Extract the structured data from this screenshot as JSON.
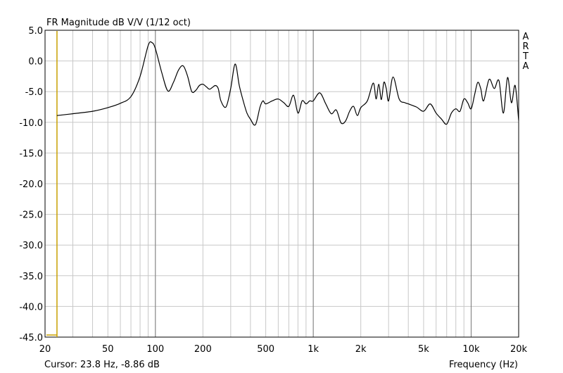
{
  "chart_data": {
    "type": "line",
    "title": "FR Magnitude dB V/V (1/12 oct)",
    "watermark": [
      "A",
      "R",
      "T",
      "A"
    ],
    "xlabel": "Frequency (Hz)",
    "ylabel": "",
    "x_scale": "log",
    "xlim": [
      20,
      20000
    ],
    "ylim": [
      -45,
      5
    ],
    "grid": true,
    "x_ticks": [
      {
        "value": 20,
        "label": "20"
      },
      {
        "value": 50,
        "label": "50"
      },
      {
        "value": 100,
        "label": "100"
      },
      {
        "value": 200,
        "label": "200"
      },
      {
        "value": 500,
        "label": "500"
      },
      {
        "value": 1000,
        "label": "1k"
      },
      {
        "value": 2000,
        "label": "2k"
      },
      {
        "value": 5000,
        "label": "5k"
      },
      {
        "value": 10000,
        "label": "10k"
      },
      {
        "value": 20000,
        "label": "20k"
      }
    ],
    "y_ticks": [
      {
        "value": 5,
        "label": "5.0"
      },
      {
        "value": 0,
        "label": "0.0"
      },
      {
        "value": -5,
        "label": "-5.0"
      },
      {
        "value": -10,
        "label": "-10.0"
      },
      {
        "value": -15,
        "label": "-15.0"
      },
      {
        "value": -20,
        "label": "-20.0"
      },
      {
        "value": -25,
        "label": "-25.0"
      },
      {
        "value": -30,
        "label": "-30.0"
      },
      {
        "value": -35,
        "label": "-35.0"
      },
      {
        "value": -40,
        "label": "-40.0"
      },
      {
        "value": -45,
        "label": "-45.0"
      }
    ],
    "cursor": {
      "frequency_hz": 23.8,
      "db": -8.86,
      "text": "Cursor: 23.8 Hz, -8.86 dB",
      "color": "#c8a000"
    },
    "series": [
      {
        "color": "#000000",
        "x": [
          23.8,
          30,
          40,
          50,
          60,
          70,
          80,
          90,
          95,
          100,
          110,
          120,
          130,
          140,
          150,
          160,
          170,
          180,
          190,
          200,
          210,
          220,
          230,
          240,
          250,
          260,
          280,
          300,
          320,
          340,
          360,
          380,
          400,
          430,
          460,
          480,
          500,
          550,
          600,
          650,
          700,
          750,
          800,
          850,
          900,
          950,
          1000,
          1100,
          1200,
          1300,
          1400,
          1500,
          1600,
          1700,
          1800,
          1900,
          2000,
          2200,
          2400,
          2500,
          2600,
          2700,
          2800,
          2900,
          3000,
          3200,
          3500,
          3800,
          4000,
          4500,
          5000,
          5500,
          6000,
          6500,
          7000,
          7500,
          8000,
          8500,
          9000,
          9500,
          10000,
          10500,
          11000,
          11500,
          12000,
          13000,
          14000,
          15000,
          16000,
          17000,
          18000,
          19000,
          20000
        ],
        "values": [
          -8.9,
          -8.6,
          -8.2,
          -7.6,
          -6.9,
          -5.8,
          -2.5,
          2.5,
          3.0,
          2.0,
          -2.0,
          -4.9,
          -3.5,
          -1.5,
          -0.8,
          -2.5,
          -5.0,
          -4.8,
          -4.0,
          -3.8,
          -4.2,
          -4.6,
          -4.3,
          -4.0,
          -4.5,
          -6.5,
          -7.5,
          -4.5,
          -0.5,
          -4.0,
          -6.5,
          -8.5,
          -9.5,
          -10.4,
          -7.5,
          -6.5,
          -7.0,
          -6.5,
          -6.2,
          -6.8,
          -7.4,
          -5.6,
          -8.5,
          -6.5,
          -7.0,
          -6.5,
          -6.5,
          -5.2,
          -7.0,
          -8.6,
          -8.0,
          -10.1,
          -9.8,
          -8.2,
          -7.4,
          -8.9,
          -7.6,
          -6.5,
          -3.6,
          -6.2,
          -3.8,
          -6.3,
          -3.5,
          -4.5,
          -6.5,
          -2.6,
          -6.2,
          -6.8,
          -7.0,
          -7.5,
          -8.2,
          -7.0,
          -8.5,
          -9.5,
          -10.3,
          -8.5,
          -7.8,
          -8.2,
          -6.2,
          -6.8,
          -7.8,
          -5.6,
          -3.5,
          -4.5,
          -6.5,
          -3.0,
          -4.5,
          -3.2,
          -8.5,
          -2.7,
          -6.8,
          -4.0,
          -9.7
        ]
      }
    ]
  },
  "footer": {
    "cursor_text": "Cursor: 23.8 Hz, -8.86 dB",
    "xlabel": "Frequency (Hz)"
  }
}
